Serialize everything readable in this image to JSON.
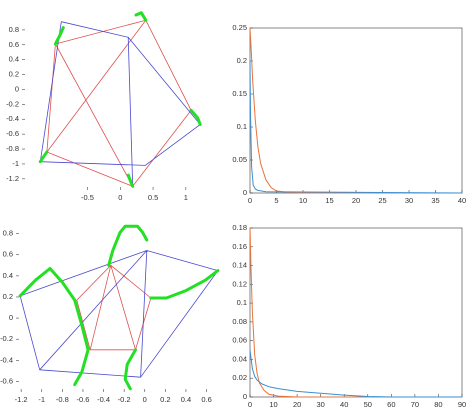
{
  "chart_data": [
    {
      "type": "line",
      "box": false,
      "xlim": [
        -1.5,
        1.43
      ],
      "ylim": [
        -1.35,
        1.04
      ],
      "xticks": [
        -0.5,
        0,
        0.5,
        1
      ],
      "yticks": [
        0.8,
        0.6,
        0.4,
        0.2,
        0,
        -0.2,
        -0.4,
        -0.6,
        -0.8,
        -1,
        -1.2
      ],
      "series": [
        {
          "color": "#e05050",
          "linewidth": 0.8,
          "x": [
            0.39,
            1.08,
            0.19,
            -1.12,
            -0.99,
            0.39,
            null,
            -1.12,
            0.39,
            null,
            -0.99,
            0.19
          ],
          "values": [
            0.93,
            -0.28,
            -1.3,
            -0.84,
            0.61,
            0.93,
            null,
            -0.84,
            0.93,
            null,
            0.61,
            -1.3
          ]
        },
        {
          "color": "#4a4ad0",
          "linewidth": 0.8,
          "x": [
            -0.9,
            0.12,
            1.22,
            0.38,
            -1.22,
            -0.9,
            null,
            0.12,
            0.19
          ],
          "values": [
            0.91,
            0.7,
            -0.47,
            -1.02,
            -0.97,
            0.91,
            null,
            0.7,
            -1.3
          ]
        },
        {
          "color": "#22e022",
          "linewidth": 3,
          "x": [
            -0.99,
            -0.92,
            -0.87,
            null,
            0.24,
            0.32,
            0.39,
            null,
            1.08,
            1.18,
            1.22,
            null,
            0.12,
            0.17,
            0.19,
            null,
            -1.22,
            -1.16,
            -1.12
          ],
          "values": [
            0.61,
            0.73,
            0.83,
            null,
            1.0,
            1.03,
            0.93,
            null,
            -0.28,
            -0.38,
            -0.47,
            null,
            -1.15,
            -1.26,
            -1.3,
            null,
            -0.97,
            -0.89,
            -0.84
          ]
        }
      ]
    },
    {
      "type": "line",
      "box": true,
      "xlim": [
        0,
        40
      ],
      "ylim": [
        0,
        0.25
      ],
      "xticks": [
        0,
        5,
        10,
        15,
        20,
        25,
        30,
        35,
        40
      ],
      "yticks": [
        0,
        0.05,
        0.1,
        0.15,
        0.2,
        0.25
      ],
      "series": [
        {
          "color": "#e8743b",
          "linewidth": 1,
          "x": [
            0,
            0.2,
            0.5,
            1,
            1.5,
            2,
            3,
            4,
            5,
            7,
            10,
            40
          ],
          "values": [
            0.25,
            0.22,
            0.17,
            0.11,
            0.07,
            0.045,
            0.02,
            0.008,
            0.003,
            0.001,
            0,
            0
          ]
        },
        {
          "color": "#3b8fd0",
          "linewidth": 1,
          "x": [
            0,
            0.1,
            0.3,
            0.6,
            1,
            1.5,
            3,
            40
          ],
          "values": [
            0.2,
            0.12,
            0.04,
            0.012,
            0.006,
            0.004,
            0.002,
            0
          ]
        }
      ]
    },
    {
      "type": "line",
      "box": false,
      "xlim": [
        -1.25,
        0.75
      ],
      "ylim": [
        -0.7,
        0.91
      ],
      "xticks": [
        -1.2,
        -1,
        -0.8,
        -0.6,
        -0.4,
        -0.2,
        0,
        0.2,
        0.4,
        0.6
      ],
      "yticks": [
        0.8,
        0.6,
        0.4,
        0.2,
        0,
        -0.2,
        -0.4,
        -0.6
      ],
      "series": [
        {
          "color": "#e05050",
          "linewidth": 0.8,
          "x": [
            -0.33,
            0.06,
            -0.09,
            -0.53,
            -0.66,
            -0.33,
            null,
            -0.53,
            -0.33,
            -0.09
          ],
          "values": [
            0.5,
            0.19,
            -0.3,
            -0.3,
            0.17,
            0.5,
            null,
            -0.3,
            0.5,
            -0.3
          ]
        },
        {
          "color": "#4a4ad0",
          "linewidth": 0.8,
          "x": [
            -1.21,
            0.02,
            0.71,
            -0.04,
            -1.02,
            -1.21,
            null,
            0.02,
            -1.02,
            null,
            0.02,
            -0.04
          ],
          "values": [
            0.21,
            0.64,
            0.45,
            -0.56,
            -0.49,
            0.21,
            null,
            0.64,
            -0.49,
            null,
            0.64,
            -0.56
          ]
        },
        {
          "color": "#22e022",
          "linewidth": 3,
          "x": [
            -1.21,
            -1.06,
            -0.92,
            -0.8,
            -0.68,
            -0.61,
            -0.55,
            -0.61,
            -0.68,
            null,
            -0.35,
            -0.31,
            -0.24,
            -0.19,
            -0.07,
            -0.02,
            0.02,
            null,
            0.06,
            0.21,
            0.4,
            0.59,
            0.71,
            null,
            -0.09,
            -0.17,
            -0.19,
            -0.14
          ],
          "values": [
            0.21,
            0.36,
            0.47,
            0.34,
            0.17,
            -0.07,
            -0.3,
            -0.51,
            -0.63,
            null,
            0.5,
            0.64,
            0.81,
            0.87,
            0.87,
            0.81,
            0.74,
            null,
            0.19,
            0.19,
            0.26,
            0.36,
            0.45,
            null,
            -0.3,
            -0.44,
            -0.58,
            -0.67
          ]
        }
      ]
    },
    {
      "type": "line",
      "box": true,
      "xlim": [
        0,
        90
      ],
      "ylim": [
        0,
        0.18
      ],
      "xticks": [
        0,
        10,
        20,
        30,
        40,
        50,
        60,
        70,
        80,
        90
      ],
      "yticks": [
        0,
        0.02,
        0.04,
        0.06,
        0.08,
        0.1,
        0.12,
        0.14,
        0.16,
        0.18
      ],
      "series": [
        {
          "color": "#e8743b",
          "linewidth": 1,
          "x": [
            0,
            0.5,
            1,
            2,
            3,
            4,
            6,
            8,
            12,
            20,
            90
          ],
          "values": [
            0.18,
            0.13,
            0.09,
            0.045,
            0.025,
            0.015,
            0.007,
            0.003,
            0.001,
            0,
            0
          ]
        },
        {
          "color": "#3b8fd0",
          "linewidth": 1,
          "x": [
            0,
            1,
            2,
            3,
            5,
            8,
            12,
            20,
            30,
            40,
            50,
            60,
            90
          ],
          "values": [
            0.05,
            0.03,
            0.022,
            0.018,
            0.014,
            0.011,
            0.009,
            0.006,
            0.004,
            0.002,
            0.0005,
            0,
            0
          ]
        }
      ]
    }
  ]
}
